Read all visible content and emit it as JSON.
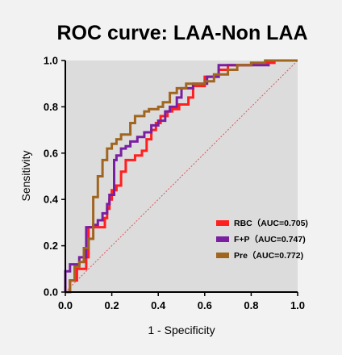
{
  "chart_data": {
    "type": "line",
    "title": "ROC curve:  LAA-Non LAA",
    "xlabel": "1 - Specificity",
    "ylabel": "Sensitivity",
    "xlim": [
      0,
      1
    ],
    "ylim": [
      0,
      1
    ],
    "x_ticks": [
      "0.0",
      "0.2",
      "0.4",
      "0.6",
      "0.8",
      "1.0"
    ],
    "y_ticks": [
      "0.0",
      "0.2",
      "0.4",
      "0.6",
      "0.8",
      "1.0"
    ],
    "legend_position": "lower-right",
    "grid": false,
    "background_color": "#dcdcdc",
    "reference_line": {
      "x": [
        0,
        1
      ],
      "y": [
        0,
        1
      ],
      "color": "#e8505a",
      "style": "dotted"
    },
    "series": [
      {
        "name": "RBC（AUC=0.705)",
        "color": "#ff1f1f",
        "x": [
          0,
          0.02,
          0.02,
          0.05,
          0.05,
          0.09,
          0.09,
          0.1,
          0.1,
          0.17,
          0.17,
          0.18,
          0.18,
          0.19,
          0.19,
          0.2,
          0.2,
          0.22,
          0.22,
          0.24,
          0.24,
          0.26,
          0.26,
          0.3,
          0.3,
          0.33,
          0.33,
          0.35,
          0.35,
          0.37,
          0.37,
          0.39,
          0.39,
          0.41,
          0.41,
          0.44,
          0.44,
          0.46,
          0.46,
          0.49,
          0.49,
          0.53,
          0.53,
          0.55,
          0.55,
          0.6,
          0.6,
          0.66,
          0.66,
          0.7,
          0.7,
          0.8,
          0.8,
          0.9,
          0.9,
          1
        ],
        "y": [
          0,
          0,
          0.05,
          0.05,
          0.1,
          0.1,
          0.15,
          0.15,
          0.28,
          0.28,
          0.32,
          0.32,
          0.36,
          0.36,
          0.4,
          0.4,
          0.44,
          0.44,
          0.46,
          0.46,
          0.52,
          0.52,
          0.57,
          0.57,
          0.59,
          0.59,
          0.61,
          0.61,
          0.66,
          0.66,
          0.7,
          0.7,
          0.73,
          0.73,
          0.76,
          0.76,
          0.78,
          0.78,
          0.79,
          0.79,
          0.81,
          0.81,
          0.84,
          0.84,
          0.89,
          0.89,
          0.93,
          0.93,
          0.96,
          0.96,
          0.98,
          0.98,
          0.99,
          0.99,
          1,
          1
        ]
      },
      {
        "name": "F+P（AUC=0.747)",
        "color": "#7a1fa2",
        "x": [
          0,
          0,
          0.02,
          0.02,
          0.06,
          0.06,
          0.09,
          0.09,
          0.12,
          0.12,
          0.14,
          0.14,
          0.16,
          0.16,
          0.18,
          0.18,
          0.19,
          0.19,
          0.21,
          0.21,
          0.22,
          0.22,
          0.24,
          0.24,
          0.26,
          0.26,
          0.28,
          0.28,
          0.31,
          0.31,
          0.34,
          0.34,
          0.37,
          0.37,
          0.4,
          0.4,
          0.43,
          0.43,
          0.45,
          0.45,
          0.48,
          0.48,
          0.5,
          0.5,
          0.55,
          0.55,
          0.61,
          0.61,
          0.66,
          0.66,
          0.71,
          0.71,
          0.88
        ],
        "y": [
          0,
          0.09,
          0.09,
          0.12,
          0.12,
          0.15,
          0.15,
          0.28,
          0.28,
          0.29,
          0.29,
          0.31,
          0.31,
          0.34,
          0.34,
          0.38,
          0.38,
          0.42,
          0.42,
          0.57,
          0.57,
          0.59,
          0.59,
          0.62,
          0.62,
          0.63,
          0.63,
          0.65,
          0.65,
          0.67,
          0.67,
          0.69,
          0.69,
          0.72,
          0.72,
          0.74,
          0.74,
          0.78,
          0.78,
          0.8,
          0.8,
          0.84,
          0.84,
          0.88,
          0.88,
          0.9,
          0.9,
          0.93,
          0.93,
          0.98,
          0.98,
          0.98,
          0.98
        ]
      },
      {
        "name": "Pre（AUC=0.772)",
        "color": "#a0651f",
        "x": [
          0,
          0.02,
          0.02,
          0.04,
          0.04,
          0.06,
          0.06,
          0.08,
          0.08,
          0.1,
          0.1,
          0.12,
          0.12,
          0.14,
          0.14,
          0.16,
          0.16,
          0.18,
          0.18,
          0.2,
          0.2,
          0.22,
          0.22,
          0.24,
          0.24,
          0.28,
          0.28,
          0.3,
          0.3,
          0.34,
          0.34,
          0.36,
          0.36,
          0.4,
          0.4,
          0.42,
          0.42,
          0.45,
          0.45,
          0.48,
          0.48,
          0.52,
          0.52,
          0.6,
          0.6,
          0.64,
          0.64,
          0.7,
          0.7,
          0.74,
          0.74,
          0.8,
          0.8,
          0.86,
          0.86,
          0.92,
          0.92,
          1
        ],
        "y": [
          0,
          0,
          0.05,
          0.05,
          0.11,
          0.11,
          0.13,
          0.13,
          0.19,
          0.19,
          0.23,
          0.23,
          0.41,
          0.41,
          0.5,
          0.5,
          0.57,
          0.57,
          0.62,
          0.62,
          0.64,
          0.64,
          0.66,
          0.66,
          0.68,
          0.68,
          0.73,
          0.73,
          0.76,
          0.76,
          0.78,
          0.78,
          0.79,
          0.79,
          0.8,
          0.8,
          0.82,
          0.82,
          0.86,
          0.86,
          0.88,
          0.88,
          0.9,
          0.9,
          0.91,
          0.91,
          0.94,
          0.94,
          0.96,
          0.96,
          0.98,
          0.98,
          0.99,
          0.99,
          1,
          1,
          1,
          1
        ]
      }
    ]
  }
}
